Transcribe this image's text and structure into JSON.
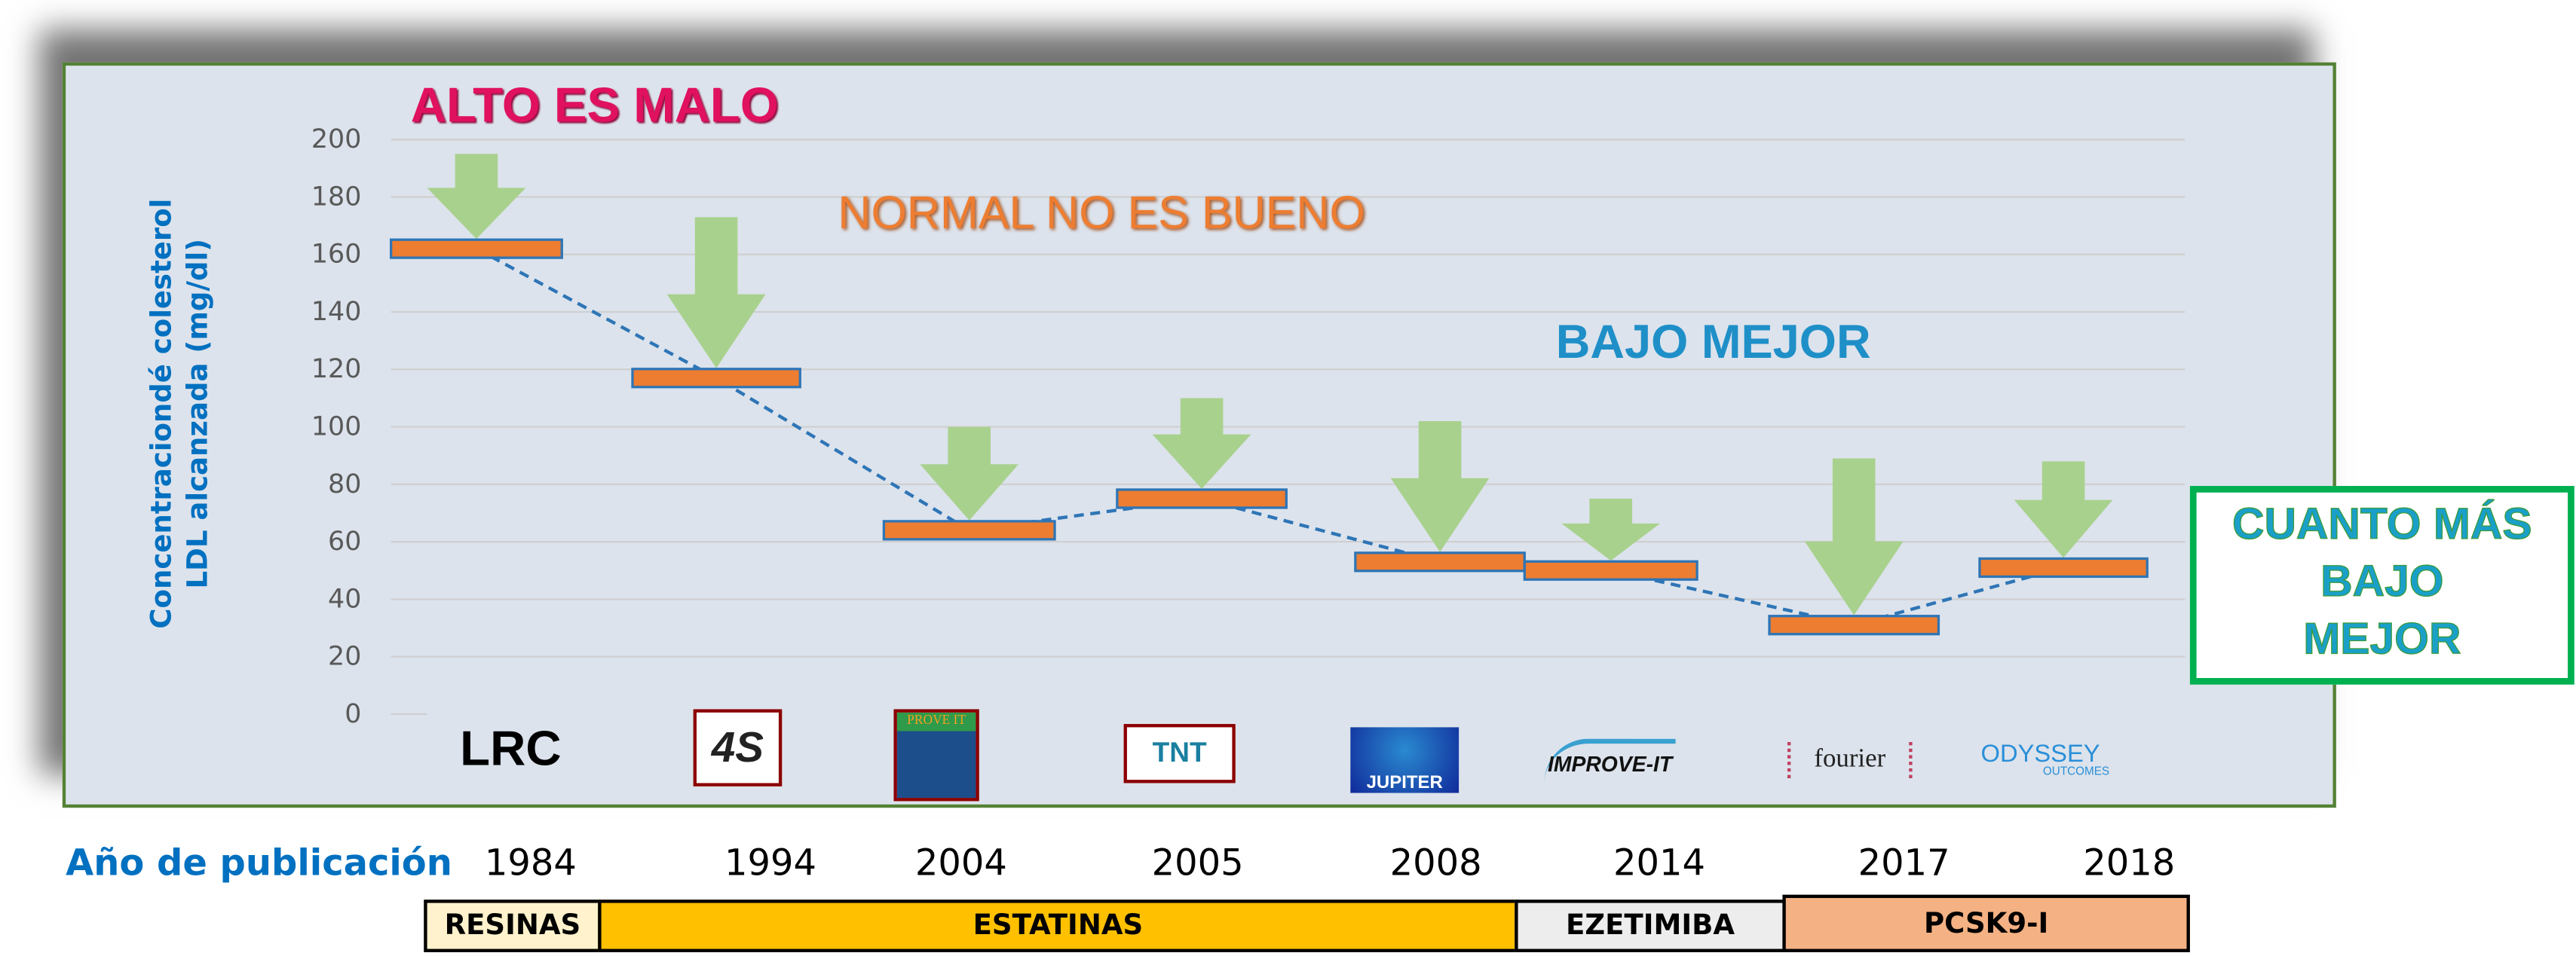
{
  "chart_data": {
    "type": "bar",
    "subtype": "floating-bar-with-dashed-trend-line",
    "ylabel_lines": [
      "Concentraciondé colesterol",
      "LDL alcanzada  (mg/dl)"
    ],
    "ylim": [
      0,
      200
    ],
    "yticks": [
      "0",
      "20",
      "40",
      "60",
      "80",
      "100",
      "120",
      "140",
      "160",
      "180",
      "200"
    ],
    "grid": true,
    "categories": [
      "LRC",
      "4S",
      "PROVE IT",
      "TNT",
      "JUPITER",
      "IMPROVE-IT",
      "fourier",
      "ODYSSEY OUTCOMES"
    ],
    "years": [
      "1984",
      "1994",
      "2004",
      "2005",
      "2008",
      "2014",
      "2017",
      "2018"
    ],
    "values": [
      162,
      117,
      64,
      75,
      53,
      50,
      31,
      51
    ],
    "arrow_top_values": [
      195,
      173,
      100,
      110,
      102,
      75,
      89,
      88
    ],
    "colors": {
      "bar": "#ED7D31",
      "bar_border": "#2E75B6",
      "trend": "#2E75B6",
      "arrow": "#A9D18E",
      "panel": "#DCE3EC"
    }
  },
  "annotations": {
    "alto": "ALTO ES MALO",
    "normal": "NORMAL NO ES BUENO",
    "bajo": "BAJO MEJOR",
    "box_lines": [
      "CUANTO MÁS",
      "BAJO",
      "MEJOR"
    ]
  },
  "logos": {
    "lrc": "LRC",
    "s4": "4S",
    "prove": "PROVE IT",
    "tnt": "TNT",
    "jupiter": "JUPITER",
    "improve": "IMPROVE-IT",
    "fourier": "fourier",
    "odyssey": "ODYSSEY",
    "odyssey_sub": "OUTCOMES"
  },
  "xaxis_label": "Año de publicación",
  "drug_classes": [
    {
      "label": "RESINAS",
      "color": "#FFF2CC"
    },
    {
      "label": "ESTATINAS",
      "color": "#FFC000"
    },
    {
      "label": "EZETIMIBA",
      "color": "#EDEDED"
    },
    {
      "label": "PCSK9-I",
      "color": "#F4B183"
    }
  ]
}
